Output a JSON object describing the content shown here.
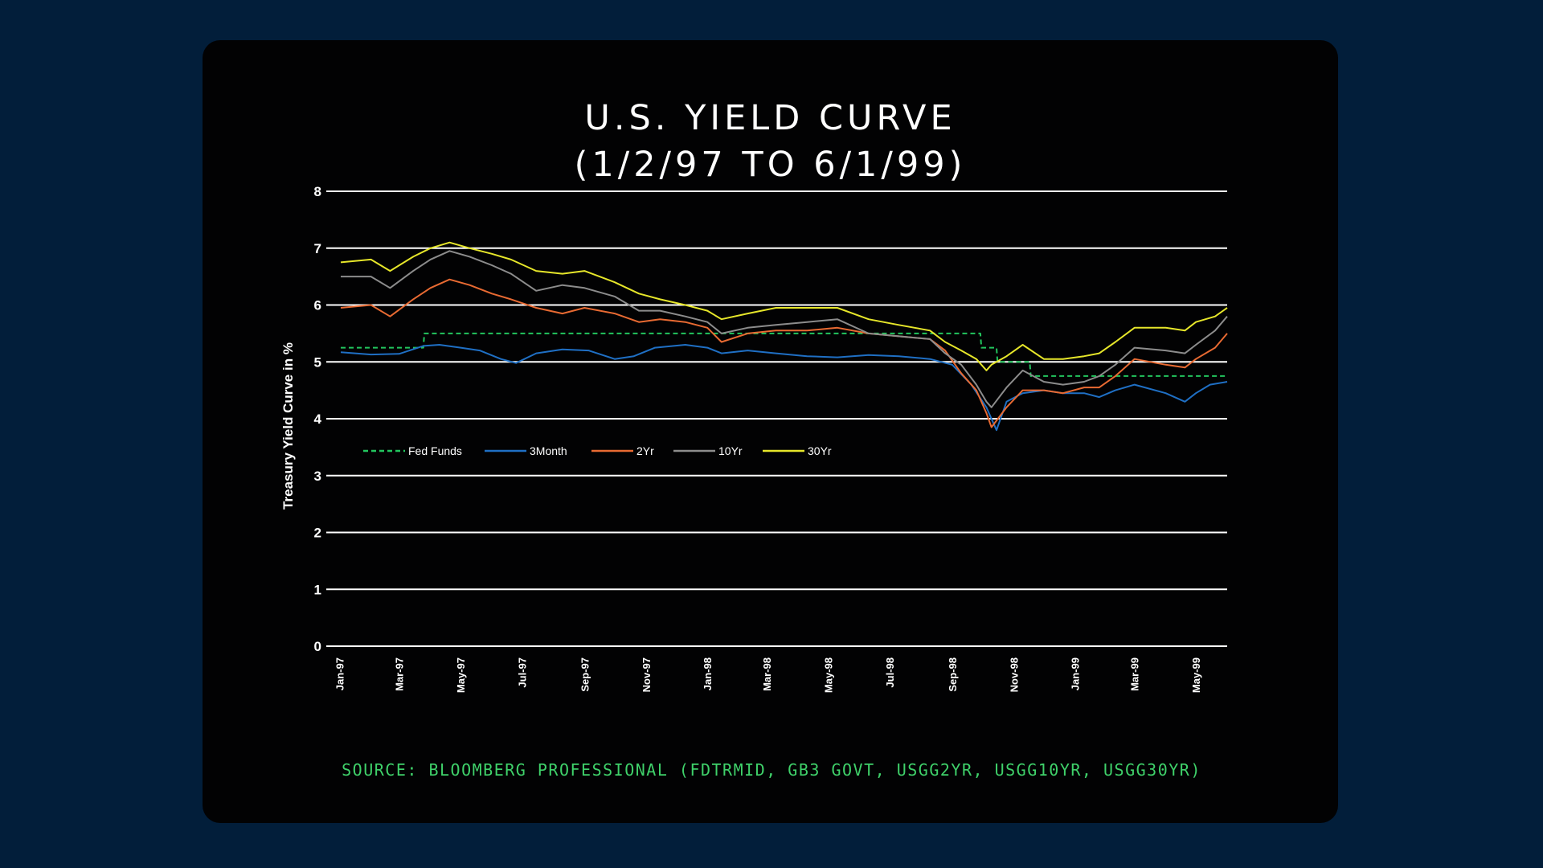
{
  "chart_data": {
    "type": "line",
    "title": [
      "U.S. YIELD CURVE",
      "(1/2/97 TO 6/1/99)"
    ],
    "ylabel": "Treasury Yield Curve in %",
    "xlabel": "",
    "ylim": [
      0,
      8
    ],
    "yticks": [
      0,
      1,
      2,
      3,
      4,
      5,
      6,
      7,
      8
    ],
    "xlim": [
      "1997-01-02",
      "1999-06-01"
    ],
    "xticks": [
      {
        "date": "1997-01-01",
        "label": "Jan-97"
      },
      {
        "date": "1997-03-01",
        "label": "Mar-97"
      },
      {
        "date": "1997-05-01",
        "label": "May-97"
      },
      {
        "date": "1997-07-01",
        "label": "Jul-97"
      },
      {
        "date": "1997-09-01",
        "label": "Sep-97"
      },
      {
        "date": "1997-11-01",
        "label": "Nov-97"
      },
      {
        "date": "1998-01-01",
        "label": "Jan-98"
      },
      {
        "date": "1998-03-01",
        "label": "Mar-98"
      },
      {
        "date": "1998-05-01",
        "label": "May-98"
      },
      {
        "date": "1998-07-01",
        "label": "Jul-98"
      },
      {
        "date": "1998-09-01",
        "label": "Sep-98"
      },
      {
        "date": "1998-11-01",
        "label": "Nov-98"
      },
      {
        "date": "1999-01-01",
        "label": "Jan-99"
      },
      {
        "date": "1999-03-01",
        "label": "Mar-99"
      },
      {
        "date": "1999-05-01",
        "label": "May-99"
      }
    ],
    "grid": "horizontal",
    "legend_position": "lower-left",
    "series": [
      {
        "name": "Fed Funds",
        "color": "#22c55e",
        "dashed": true,
        "step": true,
        "points": [
          [
            "1997-01-02",
            5.25
          ],
          [
            "1997-03-25",
            5.25
          ],
          [
            "1997-03-26",
            5.5
          ],
          [
            "1998-09-29",
            5.5
          ],
          [
            "1998-09-30",
            5.25
          ],
          [
            "1998-10-15",
            5.25
          ],
          [
            "1998-10-16",
            5.0
          ],
          [
            "1998-11-17",
            5.0
          ],
          [
            "1998-11-18",
            4.75
          ],
          [
            "1999-06-01",
            4.75
          ]
        ]
      },
      {
        "name": "3Month",
        "color": "#1f6fc4",
        "points": [
          [
            "1997-01-02",
            5.17
          ],
          [
            "1997-02-01",
            5.13
          ],
          [
            "1997-03-01",
            5.14
          ],
          [
            "1997-03-25",
            5.28
          ],
          [
            "1997-04-10",
            5.3
          ],
          [
            "1997-05-01",
            5.25
          ],
          [
            "1997-05-20",
            5.2
          ],
          [
            "1997-06-10",
            5.05
          ],
          [
            "1997-06-25",
            4.98
          ],
          [
            "1997-07-15",
            5.15
          ],
          [
            "1997-08-10",
            5.22
          ],
          [
            "1997-09-05",
            5.2
          ],
          [
            "1997-10-01",
            5.05
          ],
          [
            "1997-10-20",
            5.1
          ],
          [
            "1997-11-10",
            5.25
          ],
          [
            "1997-12-10",
            5.3
          ],
          [
            "1998-01-01",
            5.25
          ],
          [
            "1998-01-15",
            5.15
          ],
          [
            "1998-02-10",
            5.2
          ],
          [
            "1998-03-10",
            5.15
          ],
          [
            "1998-04-10",
            5.1
          ],
          [
            "1998-05-10",
            5.08
          ],
          [
            "1998-06-10",
            5.12
          ],
          [
            "1998-07-10",
            5.1
          ],
          [
            "1998-08-10",
            5.05
          ],
          [
            "1998-09-01",
            4.95
          ],
          [
            "1998-09-20",
            4.6
          ],
          [
            "1998-10-05",
            4.2
          ],
          [
            "1998-10-15",
            3.8
          ],
          [
            "1998-10-25",
            4.3
          ],
          [
            "1998-11-10",
            4.45
          ],
          [
            "1998-12-01",
            4.5
          ],
          [
            "1998-12-20",
            4.45
          ],
          [
            "1999-01-10",
            4.45
          ],
          [
            "1999-01-25",
            4.38
          ],
          [
            "1999-02-10",
            4.5
          ],
          [
            "1999-03-01",
            4.6
          ],
          [
            "1999-04-01",
            4.45
          ],
          [
            "1999-04-20",
            4.3
          ],
          [
            "1999-05-01",
            4.45
          ],
          [
            "1999-05-15",
            4.6
          ],
          [
            "1999-06-01",
            4.65
          ]
        ]
      },
      {
        "name": "2Yr",
        "color": "#e86a32",
        "points": [
          [
            "1997-01-02",
            5.95
          ],
          [
            "1997-02-01",
            6.0
          ],
          [
            "1997-02-20",
            5.8
          ],
          [
            "1997-03-15",
            6.1
          ],
          [
            "1997-04-01",
            6.3
          ],
          [
            "1997-04-20",
            6.45
          ],
          [
            "1997-05-10",
            6.35
          ],
          [
            "1997-06-01",
            6.2
          ],
          [
            "1997-06-20",
            6.1
          ],
          [
            "1997-07-15",
            5.95
          ],
          [
            "1997-08-10",
            5.85
          ],
          [
            "1997-09-01",
            5.95
          ],
          [
            "1997-10-01",
            5.85
          ],
          [
            "1997-10-25",
            5.7
          ],
          [
            "1997-11-15",
            5.75
          ],
          [
            "1997-12-10",
            5.7
          ],
          [
            "1998-01-01",
            5.6
          ],
          [
            "1998-01-15",
            5.35
          ],
          [
            "1998-02-10",
            5.5
          ],
          [
            "1998-03-10",
            5.55
          ],
          [
            "1998-04-10",
            5.55
          ],
          [
            "1998-05-10",
            5.6
          ],
          [
            "1998-06-10",
            5.5
          ],
          [
            "1998-07-10",
            5.45
          ],
          [
            "1998-08-10",
            5.4
          ],
          [
            "1998-08-25",
            5.2
          ],
          [
            "1998-09-10",
            4.8
          ],
          [
            "1998-09-25",
            4.5
          ],
          [
            "1998-10-05",
            4.1
          ],
          [
            "1998-10-10",
            3.85
          ],
          [
            "1998-10-25",
            4.2
          ],
          [
            "1998-11-10",
            4.5
          ],
          [
            "1998-12-01",
            4.5
          ],
          [
            "1998-12-20",
            4.45
          ],
          [
            "1999-01-10",
            4.55
          ],
          [
            "1999-01-25",
            4.55
          ],
          [
            "1999-02-10",
            4.75
          ],
          [
            "1999-03-01",
            5.05
          ],
          [
            "1999-04-01",
            4.95
          ],
          [
            "1999-04-20",
            4.9
          ],
          [
            "1999-05-01",
            5.05
          ],
          [
            "1999-05-20",
            5.25
          ],
          [
            "1999-06-01",
            5.5
          ]
        ]
      },
      {
        "name": "10Yr",
        "color": "#8c8c8c",
        "points": [
          [
            "1997-01-02",
            6.5
          ],
          [
            "1997-02-01",
            6.5
          ],
          [
            "1997-02-20",
            6.3
          ],
          [
            "1997-03-15",
            6.6
          ],
          [
            "1997-04-01",
            6.8
          ],
          [
            "1997-04-20",
            6.95
          ],
          [
            "1997-05-10",
            6.85
          ],
          [
            "1997-06-01",
            6.7
          ],
          [
            "1997-06-20",
            6.55
          ],
          [
            "1997-07-15",
            6.25
          ],
          [
            "1997-08-10",
            6.35
          ],
          [
            "1997-09-01",
            6.3
          ],
          [
            "1997-10-01",
            6.15
          ],
          [
            "1997-10-25",
            5.9
          ],
          [
            "1997-11-15",
            5.9
          ],
          [
            "1997-12-10",
            5.8
          ],
          [
            "1998-01-01",
            5.7
          ],
          [
            "1998-01-15",
            5.5
          ],
          [
            "1998-02-10",
            5.6
          ],
          [
            "1998-03-10",
            5.65
          ],
          [
            "1998-04-10",
            5.7
          ],
          [
            "1998-05-10",
            5.75
          ],
          [
            "1998-06-10",
            5.5
          ],
          [
            "1998-07-10",
            5.45
          ],
          [
            "1998-08-10",
            5.4
          ],
          [
            "1998-08-25",
            5.15
          ],
          [
            "1998-09-10",
            4.95
          ],
          [
            "1998-09-25",
            4.6
          ],
          [
            "1998-10-05",
            4.3
          ],
          [
            "1998-10-10",
            4.2
          ],
          [
            "1998-10-25",
            4.55
          ],
          [
            "1998-11-10",
            4.85
          ],
          [
            "1998-12-01",
            4.65
          ],
          [
            "1998-12-20",
            4.6
          ],
          [
            "1999-01-10",
            4.65
          ],
          [
            "1999-01-25",
            4.75
          ],
          [
            "1999-02-10",
            4.95
          ],
          [
            "1999-03-01",
            5.25
          ],
          [
            "1999-04-01",
            5.2
          ],
          [
            "1999-04-20",
            5.15
          ],
          [
            "1999-05-01",
            5.3
          ],
          [
            "1999-05-20",
            5.55
          ],
          [
            "1999-06-01",
            5.8
          ]
        ]
      },
      {
        "name": "30Yr",
        "color": "#e6e62a",
        "points": [
          [
            "1997-01-02",
            6.75
          ],
          [
            "1997-02-01",
            6.8
          ],
          [
            "1997-02-20",
            6.6
          ],
          [
            "1997-03-15",
            6.85
          ],
          [
            "1997-04-01",
            7.0
          ],
          [
            "1997-04-20",
            7.1
          ],
          [
            "1997-05-10",
            7.0
          ],
          [
            "1997-06-01",
            6.9
          ],
          [
            "1997-06-20",
            6.8
          ],
          [
            "1997-07-15",
            6.6
          ],
          [
            "1997-08-10",
            6.55
          ],
          [
            "1997-09-01",
            6.6
          ],
          [
            "1997-10-01",
            6.4
          ],
          [
            "1997-10-25",
            6.2
          ],
          [
            "1997-11-15",
            6.1
          ],
          [
            "1997-12-10",
            6.0
          ],
          [
            "1998-01-01",
            5.9
          ],
          [
            "1998-01-15",
            5.75
          ],
          [
            "1998-02-10",
            5.85
          ],
          [
            "1998-03-10",
            5.95
          ],
          [
            "1998-04-10",
            5.95
          ],
          [
            "1998-05-10",
            5.95
          ],
          [
            "1998-06-10",
            5.75
          ],
          [
            "1998-07-10",
            5.65
          ],
          [
            "1998-08-10",
            5.55
          ],
          [
            "1998-08-25",
            5.35
          ],
          [
            "1998-09-10",
            5.2
          ],
          [
            "1998-09-25",
            5.05
          ],
          [
            "1998-10-05",
            4.85
          ],
          [
            "1998-10-10",
            4.95
          ],
          [
            "1998-10-25",
            5.1
          ],
          [
            "1998-11-10",
            5.3
          ],
          [
            "1998-12-01",
            5.05
          ],
          [
            "1998-12-20",
            5.05
          ],
          [
            "1999-01-10",
            5.1
          ],
          [
            "1999-01-25",
            5.15
          ],
          [
            "1999-02-10",
            5.35
          ],
          [
            "1999-03-01",
            5.6
          ],
          [
            "1999-04-01",
            5.6
          ],
          [
            "1999-04-20",
            5.55
          ],
          [
            "1999-05-01",
            5.7
          ],
          [
            "1999-05-20",
            5.8
          ],
          [
            "1999-06-01",
            5.95
          ]
        ]
      }
    ]
  },
  "source_note": "SOURCE: BLOOMBERG PROFESSIONAL (FDTRMID, GB3 GOVT, USGG2YR, USGG10YR, USGG30YR)",
  "colors": {
    "page_background": "#021e3a",
    "card_background": "#020203",
    "gridline": "#ffffff",
    "title": "#ffffff",
    "source_note": "#3fd16a"
  }
}
